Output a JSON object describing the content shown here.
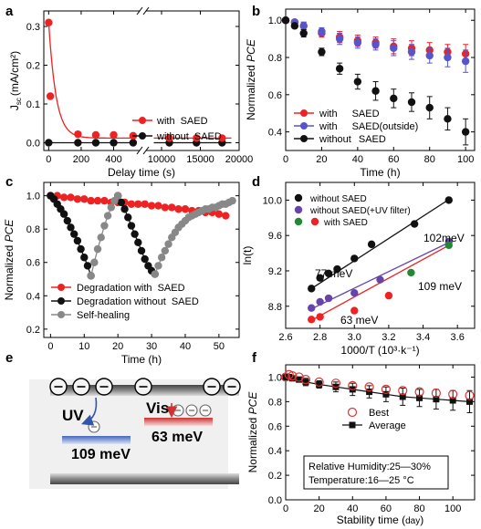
{
  "chart_data": [
    {
      "panel": "a",
      "type": "line",
      "xlabel": "Delay time (s)",
      "ylabel": "J_sc (mA/cm²)",
      "ylabel_main": "J",
      "ylabel_sub": "sc",
      "ylabel_unit": "(mA/cm²)",
      "x_ticks": [
        "0",
        "200",
        "400",
        "10000",
        "15000",
        "20000"
      ],
      "y_ticks": [
        "0.0",
        "0.1",
        "0.2",
        "0.3"
      ],
      "xlim_left": [
        -30,
        560
      ],
      "xlim_right": [
        8000,
        20000
      ],
      "ylim": [
        -0.02,
        0.34
      ],
      "axis_break": true,
      "legend_position": "center-right",
      "series": [
        {
          "name": "with SAED",
          "name_a": "with",
          "name_b": "SAED",
          "color": "#ee2222",
          "x": [
            0,
            10,
            180,
            290,
            400,
            520,
            11000,
            14500,
            17800
          ],
          "y": [
            0.31,
            0.12,
            0.022,
            0.02,
            0.02,
            0.018,
            0.012,
            0.012,
            0.012
          ]
        },
        {
          "name": "without SAED",
          "name_a": "without",
          "name_b": "SAED",
          "color": "#111111",
          "x": [
            0,
            180,
            290,
            400,
            520,
            11000,
            14500,
            17800
          ],
          "y": [
            0,
            0,
            0,
            0,
            0,
            0,
            0,
            0
          ]
        }
      ]
    },
    {
      "panel": "b",
      "type": "line",
      "xlabel": "Time (h)",
      "ylabel": "Normalized PCE",
      "ylabel_a": "Normalized ",
      "ylabel_b": "PCE",
      "x_ticks": [
        "0",
        "20",
        "40",
        "60",
        "80",
        "100"
      ],
      "y_ticks": [
        "0.4",
        "0.6",
        "0.8",
        "1.0"
      ],
      "xlim": [
        0,
        105
      ],
      "ylim": [
        0.3,
        1.06
      ],
      "legend_position": "bottom-left",
      "series": [
        {
          "name": "with SAED",
          "name_a": "with",
          "name_b": "SAED",
          "color": "#ee2222",
          "x": [
            0,
            5,
            10,
            20,
            30,
            40,
            50,
            60,
            70,
            80,
            90,
            100
          ],
          "y": [
            1.0,
            0.99,
            0.97,
            0.93,
            0.91,
            0.89,
            0.88,
            0.86,
            0.85,
            0.84,
            0.83,
            0.82
          ],
          "err": [
            0,
            0.01,
            0.02,
            0.02,
            0.03,
            0.03,
            0.03,
            0.04,
            0.04,
            0.04,
            0.04,
            0.05
          ]
        },
        {
          "name": "with SAED(outside)",
          "name_a": "with",
          "name_b": "SAED(outside)",
          "color": "#5555cc",
          "x": [
            0,
            5,
            10,
            20,
            30,
            40,
            50,
            60,
            70,
            80,
            90,
            100
          ],
          "y": [
            1.0,
            0.99,
            0.97,
            0.94,
            0.9,
            0.88,
            0.87,
            0.85,
            0.83,
            0.81,
            0.8,
            0.78
          ],
          "err": [
            0,
            0.01,
            0.02,
            0.02,
            0.03,
            0.03,
            0.03,
            0.04,
            0.04,
            0.04,
            0.05,
            0.06
          ]
        },
        {
          "name": "without SAED",
          "name_a": "without",
          "name_b": "SAED",
          "color": "#111111",
          "x": [
            0,
            5,
            10,
            20,
            30,
            40,
            50,
            60,
            70,
            80,
            90,
            100
          ],
          "y": [
            1.0,
            0.97,
            0.93,
            0.83,
            0.74,
            0.67,
            0.62,
            0.58,
            0.56,
            0.53,
            0.47,
            0.4
          ],
          "err": [
            0,
            0.01,
            0.02,
            0.02,
            0.03,
            0.04,
            0.05,
            0.05,
            0.05,
            0.06,
            0.06,
            0.07
          ]
        }
      ]
    },
    {
      "panel": "c",
      "type": "line",
      "xlabel": "Time (h)",
      "ylabel": "Normalized PCE",
      "ylabel_a": "Normalized ",
      "ylabel_b": "PCE",
      "x_ticks": [
        "0",
        "10",
        "20",
        "30",
        "40",
        "50"
      ],
      "y_ticks": [
        "0.2",
        "0.4",
        "0.6",
        "0.8",
        "1.0"
      ],
      "xlim": [
        -2,
        56
      ],
      "ylim": [
        0.15,
        1.08
      ],
      "legend_position": "bottom-left",
      "series": [
        {
          "name": "Degradation with SAED",
          "name_a": "Degradation  with",
          "name_b": "SAED",
          "color": "#ee2222",
          "x": [
            0,
            2,
            4,
            6,
            8,
            10,
            12,
            14,
            16,
            18,
            20,
            22,
            24,
            26,
            28,
            30,
            32,
            34,
            36,
            38,
            40,
            42,
            44,
            46,
            48,
            50,
            52
          ],
          "y": [
            1.0,
            1.0,
            0.99,
            0.99,
            0.98,
            0.98,
            0.97,
            0.97,
            0.97,
            0.96,
            0.96,
            0.96,
            0.95,
            0.95,
            0.95,
            0.94,
            0.94,
            0.93,
            0.93,
            0.92,
            0.92,
            0.91,
            0.91,
            0.9,
            0.9,
            0.89,
            0.88
          ]
        },
        {
          "name": "Degradation without SAED",
          "name_a": "Degradation  without",
          "name_b": "SAED",
          "color": "#111111",
          "x": [
            0,
            1,
            2,
            3,
            4,
            5,
            6,
            7,
            8,
            9,
            10,
            11,
            12,
            20,
            21,
            22,
            23,
            24,
            25,
            26,
            27,
            28,
            29,
            30,
            31
          ],
          "y": [
            1.0,
            0.98,
            0.95,
            0.92,
            0.89,
            0.85,
            0.81,
            0.77,
            0.73,
            0.68,
            0.63,
            0.58,
            0.52,
            1.0,
            0.96,
            0.92,
            0.87,
            0.82,
            0.77,
            0.72,
            0.67,
            0.62,
            0.58,
            0.55,
            0.53
          ]
        },
        {
          "name": "Self-healing",
          "name_a": "Self-healing",
          "name_b": "",
          "color": "#888888",
          "x": [
            12,
            13,
            14,
            15,
            16,
            17,
            18,
            19,
            20,
            31,
            32,
            33,
            34,
            35,
            36,
            37,
            38,
            39,
            40,
            41,
            42,
            43,
            44,
            45,
            46,
            47,
            48,
            49,
            50,
            51,
            52,
            53,
            54
          ],
          "y": [
            0.52,
            0.6,
            0.68,
            0.75,
            0.82,
            0.88,
            0.93,
            0.97,
            1.0,
            0.53,
            0.58,
            0.63,
            0.67,
            0.71,
            0.75,
            0.78,
            0.81,
            0.83,
            0.85,
            0.87,
            0.88,
            0.89,
            0.9,
            0.91,
            0.92,
            0.92,
            0.93,
            0.93,
            0.94,
            0.95,
            0.95,
            0.96,
            0.97
          ]
        }
      ]
    },
    {
      "panel": "d",
      "type": "scatter",
      "xlabel": "1000/T (10³·k⁻¹)",
      "ylabel": "ln(t)",
      "x_ticks": [
        "2.6",
        "2.8",
        "3.0",
        "3.2",
        "3.4",
        "3.6"
      ],
      "y_ticks": [
        "8.8",
        "9.2",
        "9.6",
        "10.0"
      ],
      "xlim": [
        2.6,
        3.7
      ],
      "ylim": [
        8.55,
        10.2
      ],
      "legend_position": "top-left",
      "annotations": [
        "102meV",
        "77 meV",
        "109 meV",
        "63 meV"
      ],
      "series": [
        {
          "name": "without SAED",
          "color": "#111111",
          "x": [
            2.75,
            2.8,
            2.85,
            2.9,
            3.0,
            3.1,
            3.35,
            3.55
          ],
          "y": [
            9.0,
            9.12,
            9.17,
            9.22,
            9.34,
            9.5,
            9.73,
            10.0
          ]
        },
        {
          "name": "without SAED(+UV filter)",
          "color": "#6644aa",
          "x": [
            2.75,
            2.8,
            2.85,
            3.0,
            3.15,
            3.55
          ],
          "y": [
            8.78,
            8.85,
            8.89,
            8.95,
            9.1,
            9.53
          ]
        },
        {
          "name": "with SAED",
          "color": "#ee2222",
          "x": [
            2.75,
            2.8,
            3.0,
            3.2
          ],
          "y": [
            8.65,
            8.68,
            8.75,
            8.92
          ]
        },
        {
          "name": "with SAED",
          "color": "#228833",
          "x": [
            3.33,
            3.55
          ],
          "y": [
            9.18,
            9.49
          ]
        }
      ],
      "legend": [
        {
          "label": "without SAED",
          "color": "#111111"
        },
        {
          "label": "without SAED(+UV filter)",
          "color": "#6644aa"
        },
        {
          "label": "with      SAED",
          "color": "#228833",
          "color2": "#ee2222"
        }
      ]
    },
    {
      "panel": "f",
      "type": "line",
      "xlabel": "Stability time (day)",
      "xlabel_a": "Stability time (",
      "xlabel_b": "day",
      "xlabel_c": ")",
      "ylabel": "Normalized PCE",
      "ylabel_a": "Normalized ",
      "ylabel_b": "PCE",
      "x_ticks": [
        "0",
        "20",
        "40",
        "60",
        "80",
        "100"
      ],
      "y_ticks": [
        "0.0",
        "0.2",
        "0.4",
        "0.6",
        "0.8",
        "1.0"
      ],
      "xlim": [
        0,
        113
      ],
      "ylim": [
        0,
        1.1
      ],
      "legend_position": "center-right",
      "note_lines": [
        "Relative Humidity:25—30%",
        "Temperature:16—25  °C"
      ],
      "series": [
        {
          "name": "Best",
          "color": "#dd3333",
          "marker": "open-circle",
          "x": [
            0,
            2,
            4,
            8,
            12,
            20,
            30,
            40,
            50,
            60,
            70,
            80,
            90,
            100,
            110
          ],
          "y": [
            1.0,
            1.02,
            1.01,
            1.0,
            0.98,
            0.96,
            0.95,
            0.93,
            0.92,
            0.9,
            0.89,
            0.88,
            0.87,
            0.86,
            0.85
          ]
        },
        {
          "name": "Average",
          "color": "#111111",
          "marker": "square",
          "x": [
            0,
            2,
            4,
            8,
            12,
            20,
            30,
            40,
            50,
            60,
            70,
            80,
            90,
            100,
            110
          ],
          "y": [
            1.0,
            1.0,
            0.99,
            0.98,
            0.96,
            0.94,
            0.92,
            0.9,
            0.88,
            0.86,
            0.84,
            0.83,
            0.82,
            0.81,
            0.8
          ],
          "err": [
            0.01,
            0.02,
            0.02,
            0.02,
            0.03,
            0.03,
            0.04,
            0.05,
            0.05,
            0.06,
            0.07,
            0.07,
            0.08,
            0.08,
            0.09
          ]
        }
      ]
    }
  ],
  "panel_labels": [
    "a",
    "b",
    "c",
    "d",
    "e",
    "f"
  ],
  "schematic": {
    "uv_label": "UV",
    "vis_label": "Vis",
    "uv_energy": "109 meV",
    "vis_energy": "63 meV",
    "uv_color": "#3355aa",
    "vis_color": "#cc3333"
  }
}
